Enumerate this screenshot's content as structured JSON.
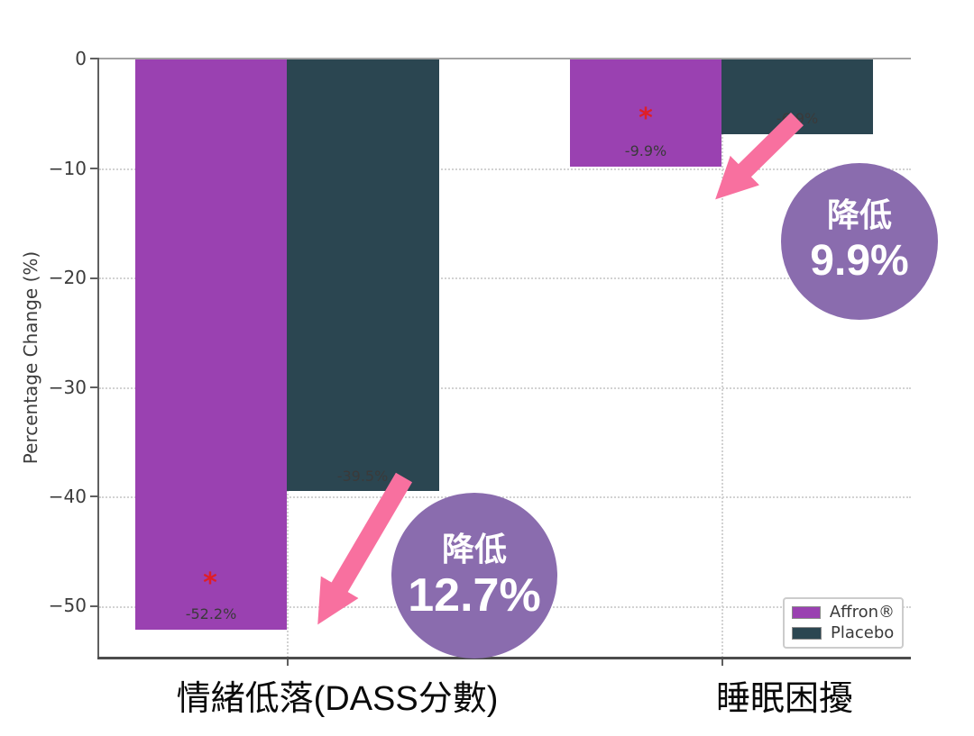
{
  "chart_data": {
    "type": "bar",
    "title": "",
    "xlabel": "",
    "ylabel": "Percentage Change (%)",
    "ylim": [
      -54.7,
      0
    ],
    "ytick_values": [
      0,
      -10,
      -20,
      -30,
      -40,
      -50
    ],
    "ytick_labels": [
      "0",
      "−10",
      "−20",
      "−30",
      "−40",
      "−50"
    ],
    "categories": [
      "情緒低落(DASS分數)",
      "睡眠困擾"
    ],
    "series": [
      {
        "name": "Affron®",
        "color": "#9a41b1",
        "values": [
          -52.2,
          -9.9
        ]
      },
      {
        "name": "Placebo",
        "color": "#2b4651",
        "values": [
          -39.5,
          -6.9
        ]
      }
    ],
    "bar_value_labels": {
      "affron_mood": "-52.2%",
      "placebo_mood": "-39.5%",
      "affron_sleep": "-9.9%",
      "placebo_sleep": "-6.9%"
    },
    "significance": {
      "marker": "*",
      "color": "#e01e26",
      "applies_to": [
        "Affron® 情緒低落(DASS分數)",
        "Affron® 睡眠困擾"
      ]
    },
    "grid": {
      "style": "dotted",
      "horizontal": true,
      "vertical_at_categories": true
    },
    "legend": {
      "position": "lower-right",
      "entries": [
        "Affron®",
        "Placebo"
      ]
    }
  },
  "annotations": {
    "circle_color": "#8a6cae",
    "arrow_color": "#f8709f",
    "mood_reduction": {
      "label": "降低",
      "value": "12.7%"
    },
    "sleep_reduction": {
      "label": "降低",
      "value": "9.9%"
    }
  }
}
